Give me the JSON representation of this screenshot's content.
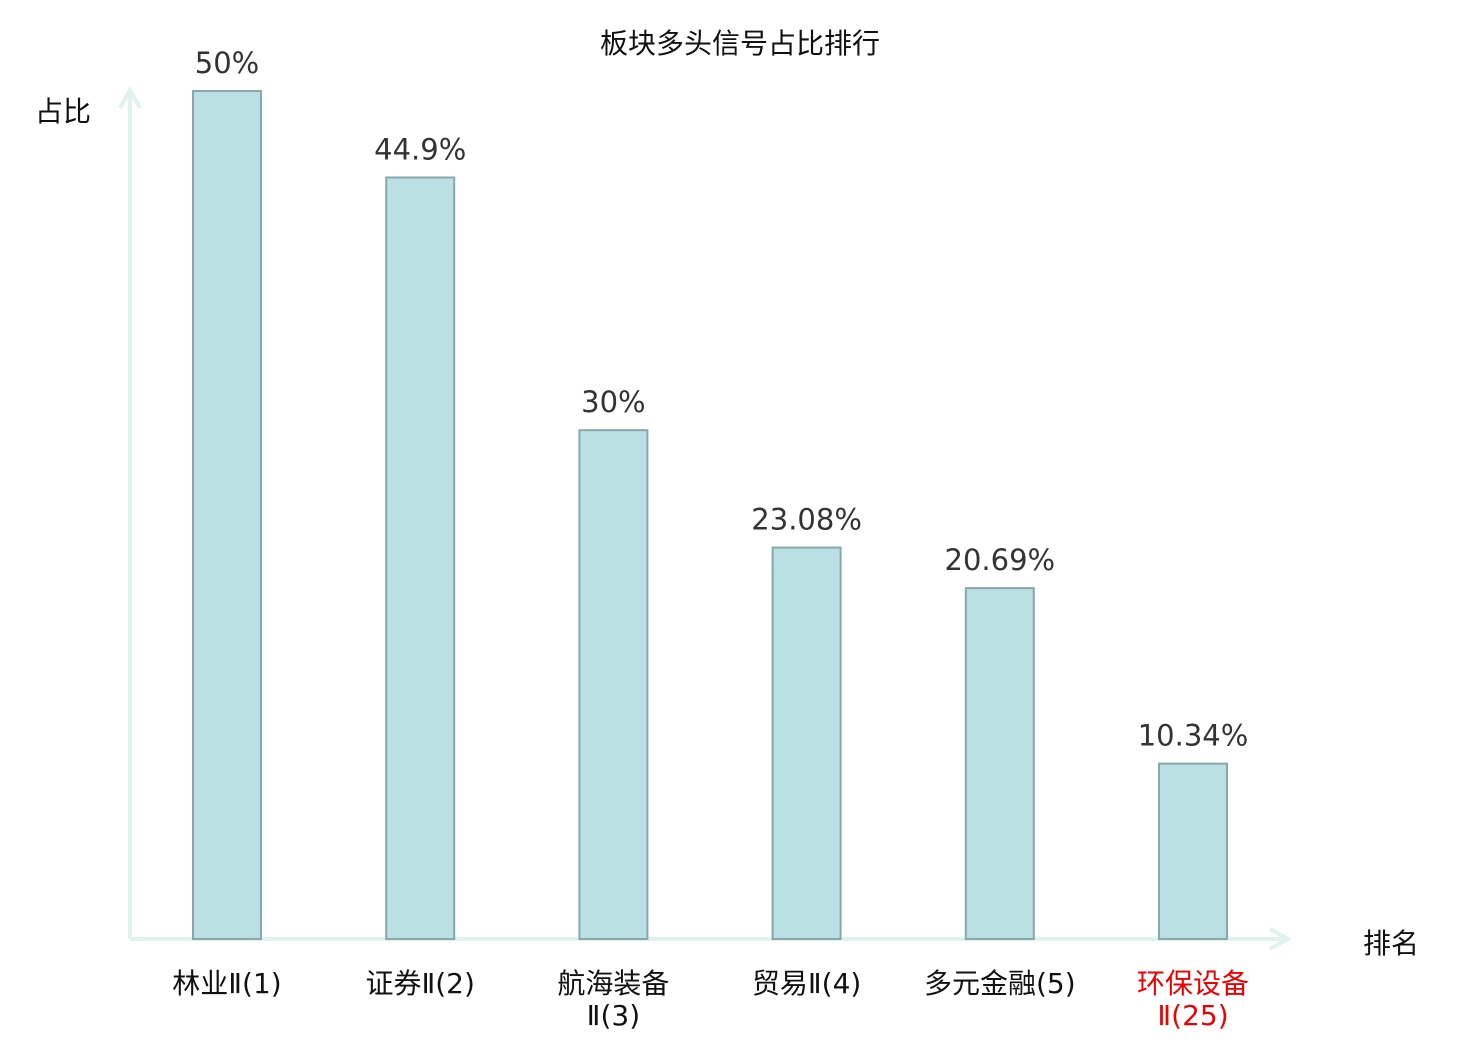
{
  "chart_data": {
    "type": "bar",
    "title": "板块多头信号占比排行",
    "xlabel": "排名",
    "ylabel": "占比",
    "ylim": [
      0,
      50
    ],
    "grid": false,
    "categories": [
      [
        "林业Ⅱ(1)"
      ],
      [
        "证券Ⅱ(2)"
      ],
      [
        "航海装备",
        "Ⅱ(3)"
      ],
      [
        "贸易Ⅱ(4)"
      ],
      [
        "多元金融(5)"
      ],
      [
        "环保设备",
        "Ⅱ(25)"
      ]
    ],
    "values": [
      50,
      44.9,
      30,
      23.08,
      20.69,
      10.34
    ],
    "value_labels": [
      "50%",
      "44.9%",
      "30%",
      "23.08%",
      "20.69%",
      "10.34%"
    ],
    "highlighted_index": 5,
    "colors": {
      "bar_fill": "#bbe0e3",
      "bar_stroke": "#86a8aa",
      "axis": "#dff2ef",
      "highlight_text": "#ee0000",
      "text": "#111111"
    }
  }
}
